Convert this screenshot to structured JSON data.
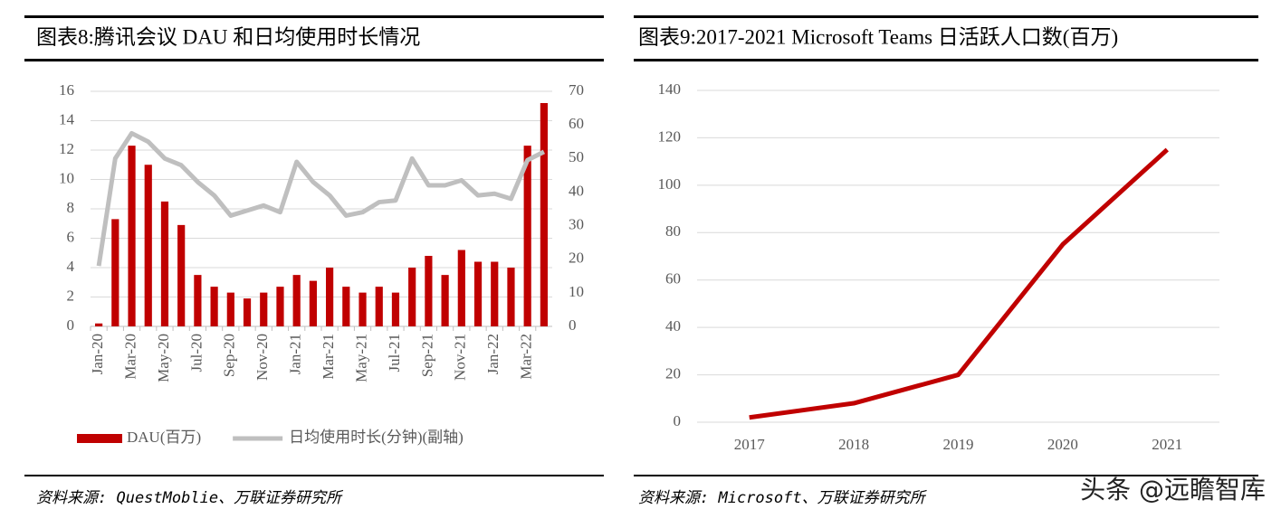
{
  "chart_data": [
    {
      "type": "combo",
      "title": "图表8:腾讯会议 DAU 和日均使用时长情况",
      "categories": [
        "Jan-20",
        null,
        "Mar-20",
        null,
        "May-20",
        null,
        "Jul-20",
        null,
        "Sep-20",
        null,
        "Nov-20",
        null,
        "Jan-21",
        null,
        "Mar-21",
        null,
        "May-21",
        null,
        "Jul-21",
        null,
        "Sep-21",
        null,
        "Nov-21",
        null,
        "Jan-22",
        null,
        "Mar-22",
        null
      ],
      "series": [
        {
          "name": "DAU(百万)",
          "type": "bar",
          "color": "#c00000",
          "values": [
            0.2,
            7.3,
            12.3,
            11,
            8.5,
            6.9,
            3.5,
            2.7,
            2.3,
            1.9,
            2.3,
            2.7,
            3.5,
            3.1,
            4.0,
            2.7,
            2.3,
            2.7,
            2.3,
            4.0,
            4.8,
            3.5,
            5.2,
            4.4,
            4.4,
            4.0,
            12.3,
            15.2
          ]
        },
        {
          "name": "日均使用时长(分钟)(副轴)",
          "type": "line",
          "color": "#bfbfbf",
          "axis": "y2",
          "values": [
            18,
            50,
            57.5,
            55,
            50,
            48,
            43,
            39,
            33,
            34.5,
            36,
            34,
            49,
            43,
            39,
            33,
            34,
            37,
            37.5,
            50,
            42,
            42,
            43.5,
            39,
            39.5,
            38,
            49.5,
            52
          ]
        }
      ],
      "ylim": [
        0,
        16
      ],
      "yticks": [
        0,
        2,
        4,
        6,
        8,
        10,
        12,
        14,
        16
      ],
      "y2lim": [
        0,
        70
      ],
      "y2ticks": [
        0,
        10,
        20,
        30,
        40,
        50,
        60,
        70
      ],
      "grid": true,
      "legend": "bottom",
      "source": "资料来源: QuestMoblie、万联证券研究所"
    },
    {
      "type": "line",
      "title": "图表9:2017-2021 Microsoft Teams 日活跃人口数(百万)",
      "categories": [
        "2017",
        "2018",
        "2019",
        "2020",
        "2021"
      ],
      "series": [
        {
          "name": "Microsoft Teams",
          "color": "#c00000",
          "values": [
            2,
            8,
            20,
            75,
            115
          ]
        }
      ],
      "ylim": [
        0,
        140
      ],
      "yticks": [
        0,
        20,
        40,
        60,
        80,
        100,
        120,
        140
      ],
      "grid": true,
      "source": "资料来源: Microsoft、万联证券研究所"
    }
  ],
  "watermark": "头条 @远瞻智库"
}
